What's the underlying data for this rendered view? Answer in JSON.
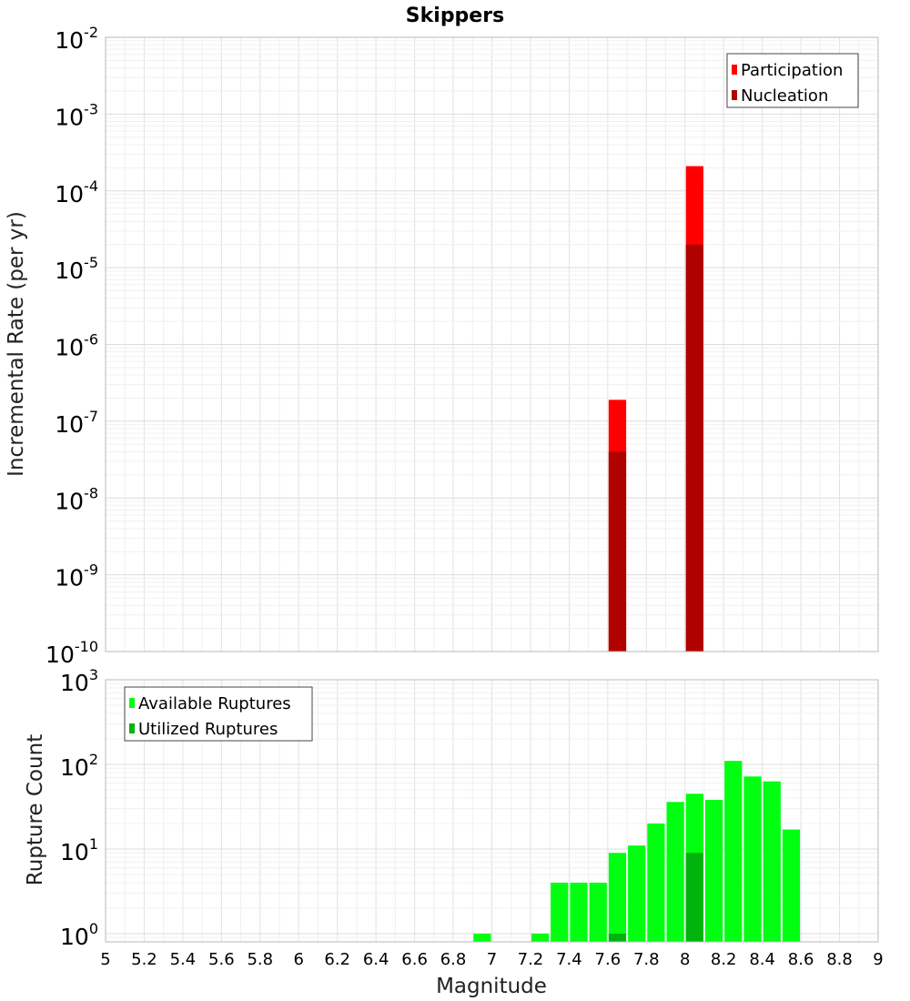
{
  "chart_data": [
    {
      "type": "bar",
      "title": "Skippers",
      "xlabel": "",
      "ylabel": "Incremental Rate (per yr)",
      "yscale": "log",
      "ylim": [
        1e-10,
        0.01
      ],
      "xlim": [
        5,
        9
      ],
      "bin_width": 0.1,
      "ytick_exponents": [
        "-10",
        "-9",
        "-8",
        "-7",
        "-6",
        "-5",
        "-4",
        "-3",
        "-2"
      ],
      "ytick_base": "10",
      "legend_position": "top-right",
      "grid": true,
      "series": [
        {
          "name": "Participation",
          "color": "#ff0000",
          "x": [
            7.65,
            8.05
          ],
          "values": [
            1.9e-07,
            0.00021
          ]
        },
        {
          "name": "Nucleation",
          "color": "#b00000",
          "x": [
            7.65,
            8.05
          ],
          "values": [
            4e-08,
            2e-05
          ]
        }
      ]
    },
    {
      "type": "bar",
      "title": "",
      "xlabel": "Magnitude",
      "ylabel": "Rupture Count",
      "yscale": "log",
      "ylim": [
        0.8,
        1000
      ],
      "xlim": [
        5,
        9
      ],
      "bin_width": 0.1,
      "ytick_exponents": [
        "0",
        "1",
        "2",
        "3"
      ],
      "ytick_base": "10",
      "xticks": [
        "5",
        "5.2",
        "5.4",
        "5.6",
        "5.8",
        "6",
        "6.2",
        "6.4",
        "6.6",
        "6.8",
        "7",
        "7.2",
        "7.4",
        "7.6",
        "7.8",
        "8",
        "8.2",
        "8.4",
        "8.6",
        "8.8",
        "9"
      ],
      "legend_position": "top-left",
      "grid": true,
      "series": [
        {
          "name": "Available Ruptures",
          "color": "#00ff11",
          "x": [
            6.95,
            7.25,
            7.35,
            7.45,
            7.55,
            7.65,
            7.75,
            7.85,
            7.95,
            8.05,
            8.15,
            8.25,
            8.35,
            8.45,
            8.55
          ],
          "values": [
            1,
            1,
            4,
            4,
            4,
            9,
            11,
            20,
            36,
            45,
            38,
            110,
            72,
            63,
            17
          ]
        },
        {
          "name": "Utilized Ruptures",
          "color": "#00b40e",
          "x": [
            7.65,
            8.05
          ],
          "values": [
            1,
            9
          ]
        }
      ]
    }
  ]
}
